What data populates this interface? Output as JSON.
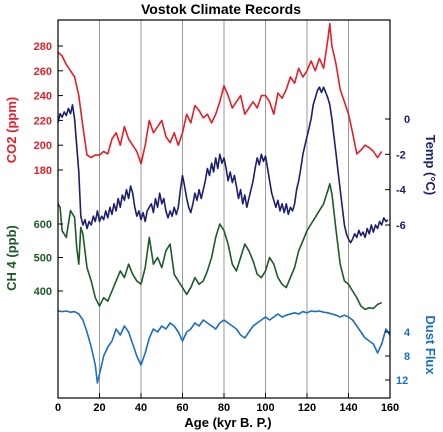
{
  "colors": {
    "co2": "#e0202a",
    "temp": "#1a1f6e",
    "ch4": "#1e5a2a",
    "dust": "#1c6fc0",
    "grid": "#9a9a9a",
    "axis": "#000000"
  },
  "chart_data": {
    "type": "line",
    "title": "Vostok Climate Records",
    "xlabel": "Age (kyr B. P.)",
    "xlim": [
      0,
      160
    ],
    "x_ticks": [
      0,
      20,
      40,
      60,
      80,
      100,
      120,
      140,
      160
    ],
    "grid": "vertical",
    "series": [
      {
        "key": "co2",
        "name": "CO2 (ppm)",
        "axis_label": "CO2 (ppm)",
        "axis_side": "left",
        "ticks": [
          180,
          200,
          220,
          240,
          260,
          280
        ],
        "x": [
          0,
          2,
          4,
          6,
          8,
          10,
          12,
          14,
          16,
          18,
          20,
          22,
          24,
          26,
          28,
          30,
          32,
          34,
          36,
          38,
          40,
          42,
          44,
          46,
          48,
          50,
          52,
          54,
          56,
          58,
          60,
          62,
          64,
          66,
          68,
          70,
          72,
          74,
          76,
          78,
          80,
          82,
          84,
          86,
          88,
          90,
          92,
          94,
          96,
          98,
          100,
          102,
          104,
          106,
          108,
          110,
          112,
          114,
          116,
          118,
          120,
          122,
          124,
          126,
          128,
          130,
          131,
          132,
          134,
          136,
          138,
          140,
          142,
          144,
          146,
          148,
          150,
          152,
          154,
          156
        ],
        "values": [
          275,
          272,
          265,
          260,
          255,
          240,
          215,
          192,
          190,
          192,
          192,
          195,
          193,
          205,
          210,
          200,
          215,
          205,
          200,
          195,
          185,
          200,
          220,
          210,
          215,
          220,
          207,
          202,
          210,
          200,
          210,
          225,
          218,
          232,
          228,
          222,
          225,
          218,
          225,
          235,
          248,
          240,
          230,
          235,
          240,
          225,
          230,
          235,
          230,
          240,
          240,
          235,
          225,
          242,
          238,
          245,
          255,
          250,
          262,
          255,
          260,
          268,
          260,
          270,
          262,
          285,
          298,
          280,
          265,
          245,
          235,
          225,
          210,
          193,
          196,
          200,
          198,
          195,
          190,
          195
        ]
      },
      {
        "key": "temp",
        "name": "Temp (°C)",
        "axis_label": "Temp (°C)",
        "axis_side": "right",
        "ticks": [
          0,
          -2,
          -4,
          -6
        ],
        "x": [
          0,
          1,
          2,
          3,
          4,
          5,
          6,
          7,
          8,
          9,
          10,
          11,
          12,
          13,
          14,
          15,
          16,
          17,
          18,
          19,
          20,
          21,
          22,
          23,
          24,
          25,
          26,
          27,
          28,
          29,
          30,
          31,
          32,
          33,
          34,
          35,
          36,
          37,
          38,
          39,
          40,
          41,
          42,
          43,
          44,
          45,
          46,
          47,
          48,
          49,
          50,
          51,
          52,
          53,
          54,
          55,
          56,
          57,
          58,
          59,
          60,
          61,
          62,
          63,
          64,
          65,
          66,
          67,
          68,
          69,
          70,
          71,
          72,
          73,
          74,
          75,
          76,
          77,
          78,
          79,
          80,
          81,
          82,
          83,
          84,
          85,
          86,
          87,
          88,
          89,
          90,
          91,
          92,
          93,
          94,
          95,
          96,
          97,
          98,
          99,
          100,
          101,
          102,
          103,
          104,
          105,
          106,
          107,
          108,
          109,
          110,
          111,
          112,
          113,
          114,
          115,
          116,
          117,
          118,
          119,
          120,
          121,
          122,
          123,
          124,
          125,
          126,
          127,
          128,
          129,
          130,
          131,
          132,
          133,
          134,
          135,
          136,
          137,
          138,
          139,
          140,
          141,
          142,
          143,
          144,
          145,
          146,
          147,
          148,
          149,
          150,
          151,
          152,
          153,
          154,
          155,
          156,
          157,
          158,
          159
        ],
        "values": [
          -0.2,
          0.3,
          0.1,
          0.4,
          0.2,
          0.6,
          0.3,
          0.8,
          0.0,
          -1.5,
          -3.0,
          -5.5,
          -6.0,
          -5.7,
          -6.2,
          -5.8,
          -6.0,
          -5.5,
          -5.8,
          -5.2,
          -5.8,
          -5.5,
          -5.7,
          -5.2,
          -5.6,
          -5.0,
          -5.4,
          -4.8,
          -5.2,
          -4.5,
          -5.0,
          -4.3,
          -4.6,
          -4.0,
          -4.5,
          -3.8,
          -4.2,
          -5.0,
          -5.5,
          -5.2,
          -5.7,
          -5.3,
          -5.8,
          -5.2,
          -5.0,
          -4.8,
          -5.3,
          -4.5,
          -5.0,
          -4.2,
          -4.8,
          -4.5,
          -5.2,
          -5.6,
          -5.2,
          -5.5,
          -5.0,
          -5.4,
          -5.0,
          -4.0,
          -3.2,
          -3.8,
          -4.5,
          -5.0,
          -5.3,
          -4.8,
          -4.2,
          -4.6,
          -4.0,
          -4.5,
          -4.0,
          -3.5,
          -2.8,
          -3.2,
          -2.5,
          -3.0,
          -2.2,
          -2.8,
          -2.0,
          -2.5,
          -2.2,
          -2.8,
          -3.5,
          -3.0,
          -3.6,
          -3.2,
          -3.8,
          -4.5,
          -4.0,
          -4.8,
          -4.3,
          -5.0,
          -4.5,
          -4.0,
          -3.5,
          -2.8,
          -2.2,
          -2.6,
          -2.0,
          -2.4,
          -2.1,
          -2.8,
          -3.5,
          -4.2,
          -4.6,
          -5.0,
          -4.6,
          -5.2,
          -4.8,
          -5.3,
          -4.8,
          -5.4,
          -5.0,
          -5.2,
          -4.8,
          -4.0,
          -3.5,
          -2.8,
          -2.0,
          -1.5,
          -1.0,
          -0.5,
          0.0,
          0.8,
          1.2,
          1.6,
          1.8,
          1.5,
          1.8,
          1.5,
          1.2,
          0.8,
          0.0,
          -1.0,
          -2.0,
          -3.0,
          -4.0,
          -5.0,
          -6.0,
          -6.5,
          -6.8,
          -7.0,
          -6.8,
          -6.5,
          -6.7,
          -6.3,
          -6.6,
          -6.4,
          -6.7,
          -6.2,
          -6.5,
          -6.0,
          -6.4,
          -6.0,
          -6.2,
          -5.8,
          -6.0,
          -5.6,
          -5.8,
          -5.7
        ]
      },
      {
        "key": "ch4",
        "name": "CH 4 (ppb)",
        "axis_label": "CH 4 (ppb)",
        "axis_side": "left",
        "ticks": [
          400,
          500,
          600
        ],
        "x": [
          0,
          1,
          2,
          4,
          6,
          8,
          9,
          10,
          11,
          12,
          14,
          16,
          18,
          20,
          22,
          24,
          26,
          28,
          30,
          32,
          34,
          36,
          38,
          40,
          42,
          44,
          46,
          48,
          50,
          52,
          54,
          56,
          58,
          60,
          62,
          64,
          66,
          68,
          70,
          72,
          74,
          76,
          78,
          80,
          82,
          84,
          86,
          88,
          90,
          92,
          94,
          96,
          98,
          100,
          102,
          104,
          106,
          108,
          110,
          112,
          114,
          116,
          118,
          120,
          122,
          124,
          126,
          128,
          130,
          131,
          132,
          134,
          136,
          138,
          140,
          142,
          144,
          146,
          148,
          150,
          152,
          154,
          156
        ],
        "values": [
          660,
          650,
          580,
          560,
          640,
          620,
          530,
          480,
          590,
          570,
          470,
          430,
          380,
          355,
          380,
          370,
          400,
          430,
          460,
          440,
          480,
          450,
          430,
          420,
          470,
          560,
          480,
          500,
          470,
          520,
          540,
          450,
          430,
          410,
          390,
          410,
          440,
          420,
          430,
          460,
          500,
          560,
          600,
          580,
          540,
          480,
          460,
          500,
          540,
          520,
          490,
          450,
          440,
          460,
          500,
          480,
          440,
          420,
          410,
          440,
          470,
          520,
          550,
          580,
          600,
          620,
          640,
          660,
          700,
          720,
          690,
          580,
          480,
          430,
          420,
          400,
          380,
          355,
          345,
          350,
          348,
          360,
          365
        ]
      },
      {
        "key": "dust",
        "name": "Dust Flux",
        "axis_label": "Dust Flux",
        "axis_side": "right",
        "ticks": [
          4,
          8,
          12
        ],
        "x": [
          0,
          2,
          4,
          6,
          8,
          10,
          12,
          14,
          16,
          18,
          19,
          20,
          22,
          24,
          26,
          28,
          30,
          32,
          34,
          36,
          38,
          40,
          42,
          44,
          46,
          48,
          50,
          52,
          54,
          56,
          58,
          60,
          62,
          64,
          66,
          68,
          70,
          72,
          74,
          76,
          78,
          80,
          82,
          84,
          86,
          88,
          90,
          92,
          94,
          96,
          98,
          100,
          102,
          104,
          106,
          108,
          110,
          112,
          114,
          116,
          118,
          120,
          122,
          124,
          126,
          128,
          130,
          132,
          134,
          136,
          138,
          140,
          142,
          144,
          146,
          148,
          150,
          152,
          154,
          156,
          158,
          160
        ],
        "values": [
          0.5,
          0.6,
          0.5,
          0.7,
          0.6,
          1.0,
          2.0,
          4.0,
          6.5,
          9.5,
          12.5,
          11.0,
          8.0,
          6.5,
          5.5,
          3.5,
          4.5,
          3.0,
          4.0,
          6.0,
          8.0,
          9.5,
          7.5,
          5.0,
          3.5,
          4.0,
          3.0,
          3.5,
          2.5,
          3.0,
          4.0,
          5.5,
          4.0,
          3.5,
          2.5,
          3.0,
          2.0,
          2.5,
          3.0,
          3.5,
          2.5,
          2.0,
          2.5,
          3.0,
          3.5,
          4.5,
          5.0,
          4.0,
          3.0,
          2.5,
          2.0,
          1.5,
          2.0,
          1.5,
          1.0,
          1.5,
          1.2,
          1.0,
          0.8,
          1.0,
          0.6,
          0.8,
          0.5,
          0.6,
          0.5,
          0.7,
          0.8,
          1.0,
          1.2,
          1.5,
          1.2,
          1.5,
          2.0,
          3.0,
          4.0,
          5.0,
          5.5,
          6.0,
          7.5,
          6.0,
          3.5,
          4.5
        ]
      }
    ]
  }
}
